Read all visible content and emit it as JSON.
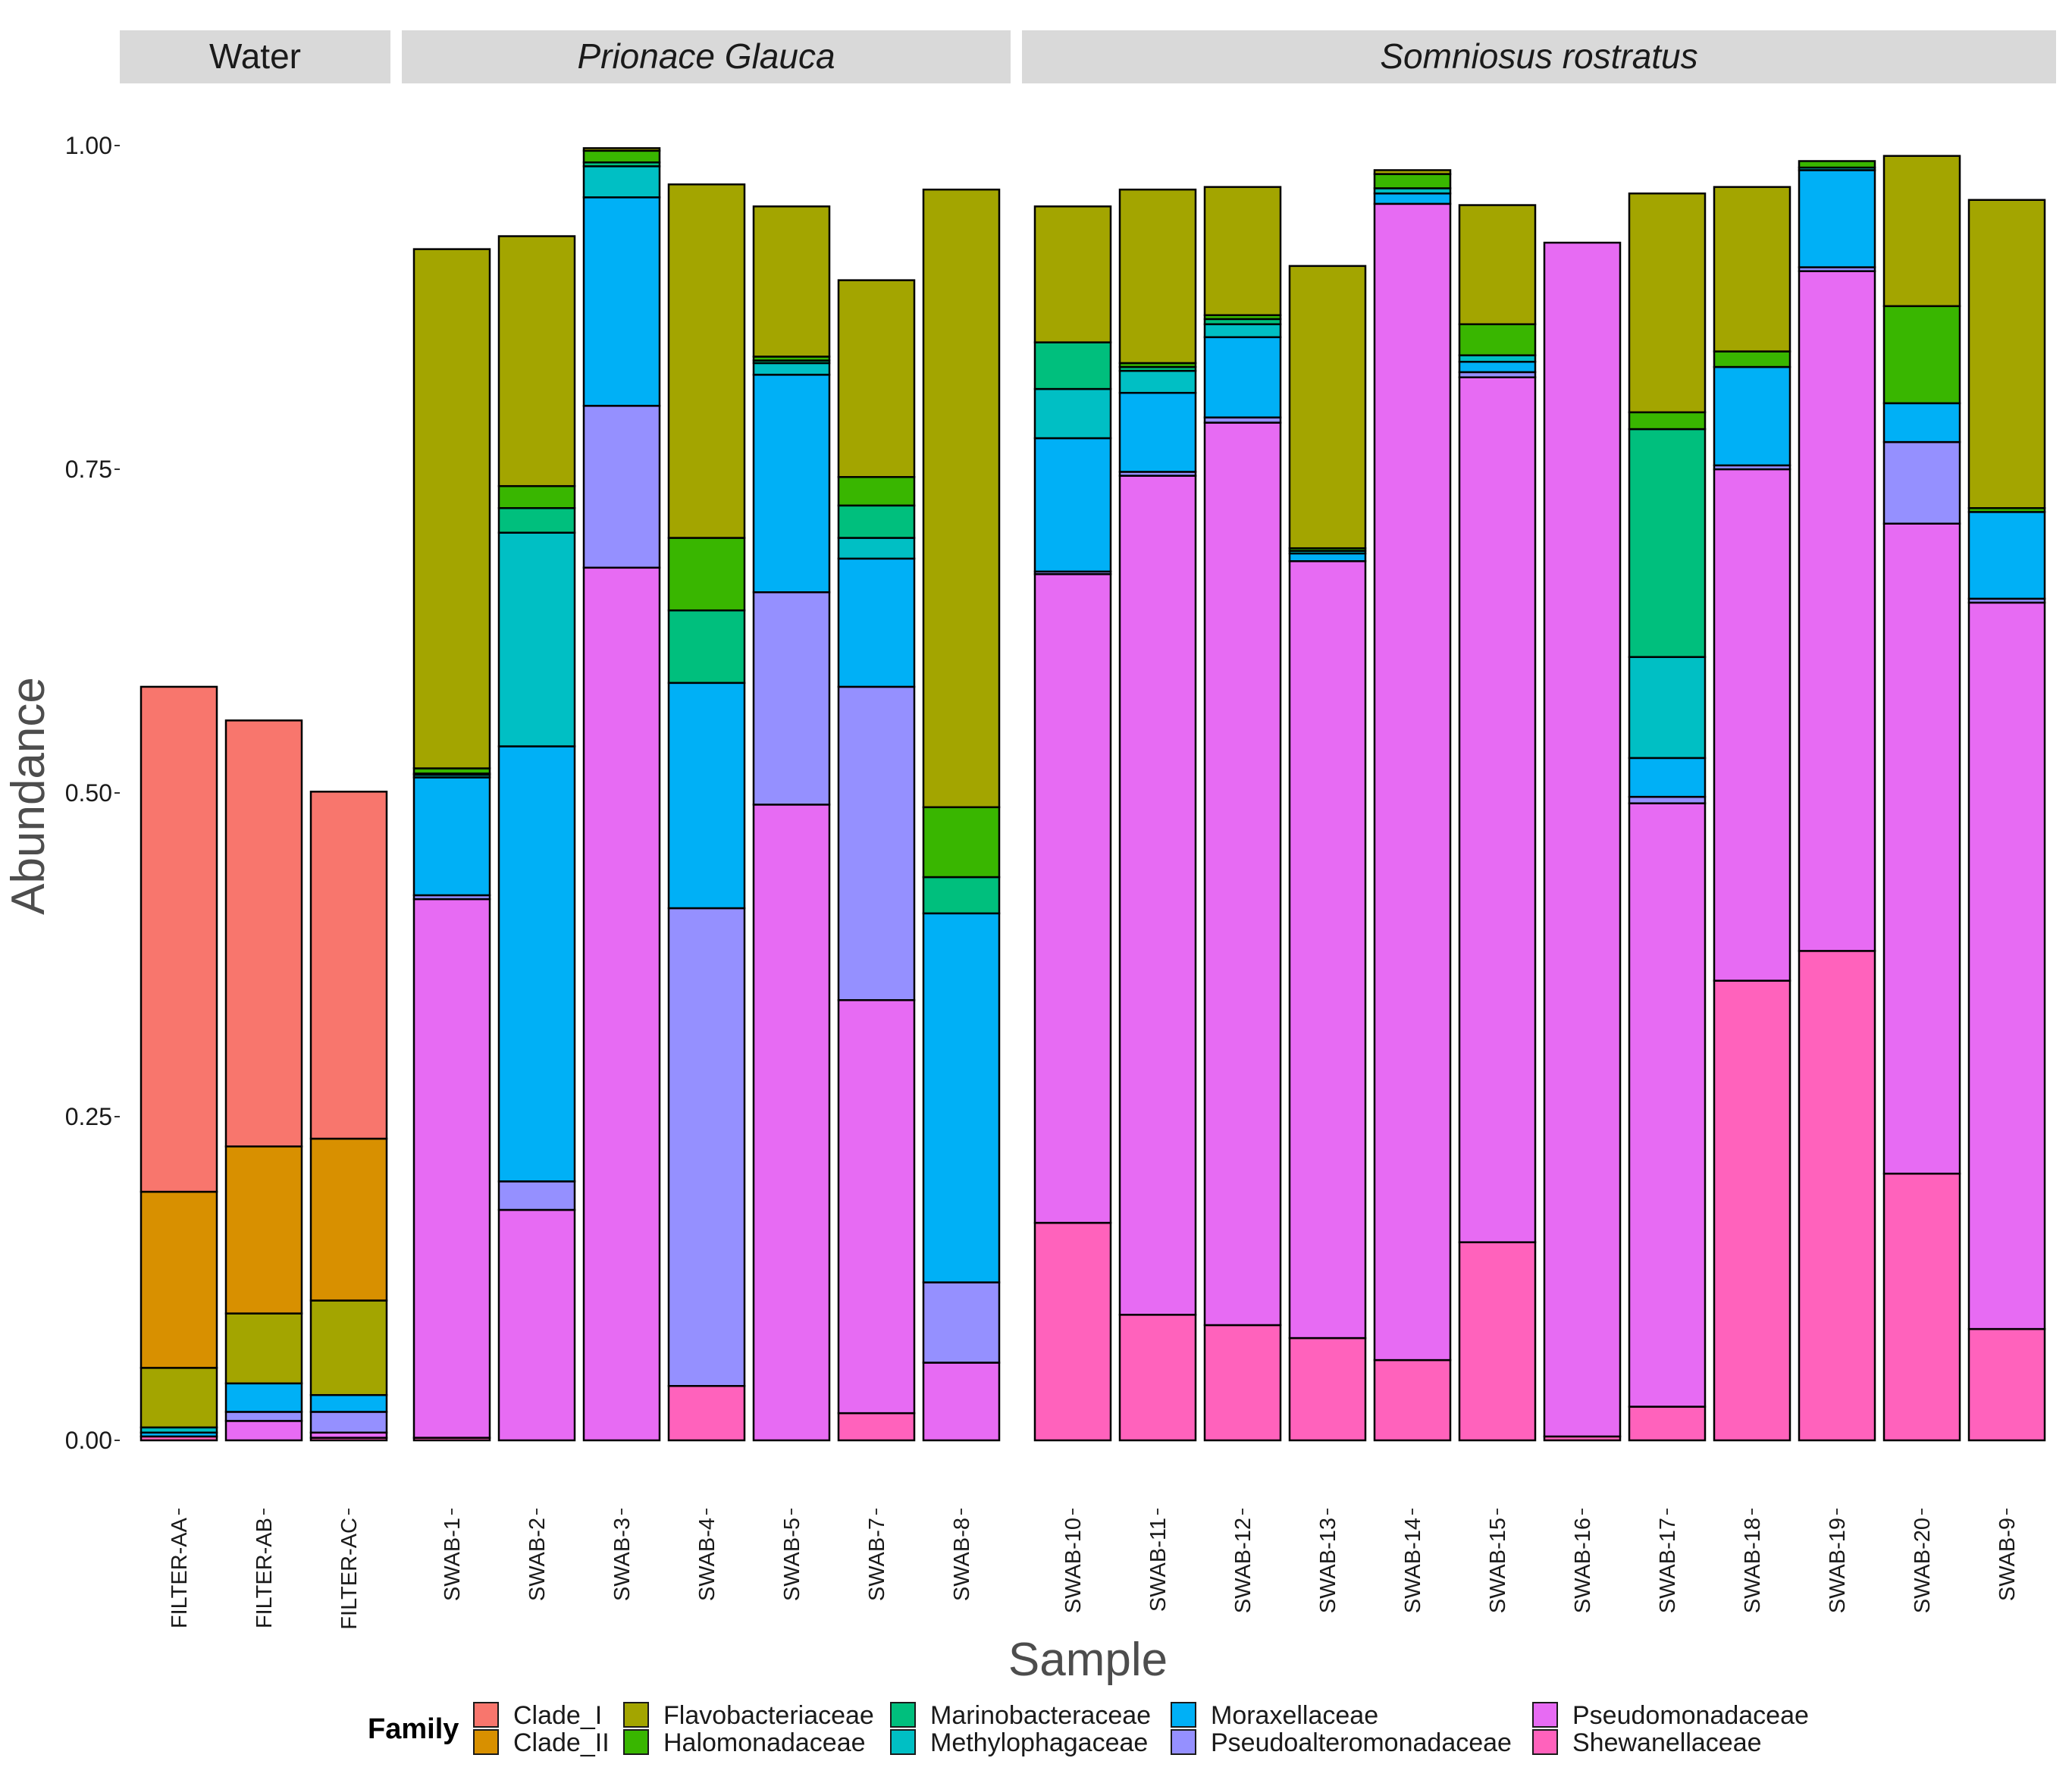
{
  "chart_data": {
    "type": "bar",
    "stacked": true,
    "xlabel": "Sample",
    "ylabel": "Abundance",
    "ylim": [
      0,
      1.0
    ],
    "yticks": [
      "0.00",
      "0.25",
      "0.50",
      "0.75",
      "1.00"
    ],
    "legend": {
      "title": "Family",
      "placement": "bottom",
      "entries": [
        {
          "name": "Clade_I",
          "color": "#F8766D"
        },
        {
          "name": "Clade_II",
          "color": "#D89000"
        },
        {
          "name": "Flavobacteriaceae",
          "color": "#A3A500"
        },
        {
          "name": "Halomonadaceae",
          "color": "#39B600"
        },
        {
          "name": "Marinobacteraceae",
          "color": "#00BF7D"
        },
        {
          "name": "Methylophagaceae",
          "color": "#00BFC4"
        },
        {
          "name": "Moraxellaceae",
          "color": "#00B0F6"
        },
        {
          "name": "Pseudoalteromonadaceae",
          "color": "#9590FF"
        },
        {
          "name": "Pseudomonadaceae",
          "color": "#E76BF3"
        },
        {
          "name": "Shewanellaceae",
          "color": "#FF62BC"
        }
      ]
    },
    "panels": [
      {
        "title": "Water",
        "italic": false,
        "samples": [
          {
            "name": "FILTER-AA",
            "segments": [
              {
                "family": "Shewanellaceae",
                "value": 0.003
              },
              {
                "family": "Moraxellaceae",
                "value": 0.003
              },
              {
                "family": "Methylophagaceae",
                "value": 0.004
              },
              {
                "family": "Flavobacteriaceae",
                "value": 0.046
              },
              {
                "family": "Clade_II",
                "value": 0.136
              },
              {
                "family": "Clade_I",
                "value": 0.39
              }
            ]
          },
          {
            "name": "FILTER-AB",
            "segments": [
              {
                "family": "Pseudomonadaceae",
                "value": 0.015
              },
              {
                "family": "Pseudoalteromonadaceae",
                "value": 0.007
              },
              {
                "family": "Moraxellaceae",
                "value": 0.022
              },
              {
                "family": "Flavobacteriaceae",
                "value": 0.054
              },
              {
                "family": "Clade_II",
                "value": 0.129
              },
              {
                "family": "Clade_I",
                "value": 0.329
              }
            ]
          },
          {
            "name": "FILTER-AC",
            "segments": [
              {
                "family": "Shewanellaceae",
                "value": 0.002
              },
              {
                "family": "Pseudomonadaceae",
                "value": 0.004
              },
              {
                "family": "Pseudoalteromonadaceae",
                "value": 0.016
              },
              {
                "family": "Moraxellaceae",
                "value": 0.013
              },
              {
                "family": "Flavobacteriaceae",
                "value": 0.073
              },
              {
                "family": "Clade_II",
                "value": 0.125
              },
              {
                "family": "Clade_I",
                "value": 0.268
              }
            ]
          }
        ]
      },
      {
        "title": "Prionace Glauca",
        "italic": true,
        "samples": [
          {
            "name": "SWAB-1",
            "segments": [
              {
                "family": "Shewanellaceae",
                "value": 0.002
              },
              {
                "family": "Pseudomonadaceae",
                "value": 0.416
              },
              {
                "family": "Pseudoalteromonadaceae",
                "value": 0.003
              },
              {
                "family": "Moraxellaceae",
                "value": 0.091
              },
              {
                "family": "Methylophagaceae",
                "value": 0.002
              },
              {
                "family": "Marinobacteraceae",
                "value": 0.001
              },
              {
                "family": "Halomonadaceae",
                "value": 0.004
              },
              {
                "family": "Flavobacteriaceae",
                "value": 0.401
              }
            ]
          },
          {
            "name": "SWAB-2",
            "segments": [
              {
                "family": "Pseudomonadaceae",
                "value": 0.178
              },
              {
                "family": "Pseudoalteromonadaceae",
                "value": 0.022
              },
              {
                "family": "Moraxellaceae",
                "value": 0.336
              },
              {
                "family": "Methylophagaceae",
                "value": 0.165
              },
              {
                "family": "Marinobacteraceae",
                "value": 0.019
              },
              {
                "family": "Halomonadaceae",
                "value": 0.017
              },
              {
                "family": "Flavobacteriaceae",
                "value": 0.193
              }
            ]
          },
          {
            "name": "SWAB-3",
            "segments": [
              {
                "family": "Pseudomonadaceae",
                "value": 0.674
              },
              {
                "family": "Pseudoalteromonadaceae",
                "value": 0.125
              },
              {
                "family": "Moraxellaceae",
                "value": 0.161
              },
              {
                "family": "Methylophagaceae",
                "value": 0.024
              },
              {
                "family": "Marinobacteraceae",
                "value": 0.003
              },
              {
                "family": "Halomonadaceae",
                "value": 0.009
              },
              {
                "family": "Flavobacteriaceae",
                "value": 0.002
              }
            ]
          },
          {
            "name": "SWAB-4",
            "segments": [
              {
                "family": "Shewanellaceae",
                "value": 0.042
              },
              {
                "family": "Pseudoalteromonadaceae",
                "value": 0.369
              },
              {
                "family": "Moraxellaceae",
                "value": 0.174
              },
              {
                "family": "Marinobacteraceae",
                "value": 0.056
              },
              {
                "family": "Halomonadaceae",
                "value": 0.056
              },
              {
                "family": "Flavobacteriaceae",
                "value": 0.273
              }
            ]
          },
          {
            "name": "SWAB-5",
            "segments": [
              {
                "family": "Pseudomonadaceae",
                "value": 0.491
              },
              {
                "family": "Pseudoalteromonadaceae",
                "value": 0.164
              },
              {
                "family": "Moraxellaceae",
                "value": 0.168
              },
              {
                "family": "Methylophagaceae",
                "value": 0.009
              },
              {
                "family": "Marinobacteraceae",
                "value": 0.002
              },
              {
                "family": "Halomonadaceae",
                "value": 0.003
              },
              {
                "family": "Flavobacteriaceae",
                "value": 0.116
              }
            ]
          },
          {
            "name": "SWAB-7",
            "segments": [
              {
                "family": "Shewanellaceae",
                "value": 0.021
              },
              {
                "family": "Pseudomonadaceae",
                "value": 0.319
              },
              {
                "family": "Pseudoalteromonadaceae",
                "value": 0.242
              },
              {
                "family": "Moraxellaceae",
                "value": 0.099
              },
              {
                "family": "Methylophagaceae",
                "value": 0.016
              },
              {
                "family": "Marinobacteraceae",
                "value": 0.025
              },
              {
                "family": "Halomonadaceae",
                "value": 0.022
              },
              {
                "family": "Flavobacteriaceae",
                "value": 0.152
              }
            ]
          },
          {
            "name": "SWAB-8",
            "segments": [
              {
                "family": "Pseudomonadaceae",
                "value": 0.06
              },
              {
                "family": "Pseudoalteromonadaceae",
                "value": 0.062
              },
              {
                "family": "Moraxellaceae",
                "value": 0.285
              },
              {
                "family": "Marinobacteraceae",
                "value": 0.028
              },
              {
                "family": "Halomonadaceae",
                "value": 0.054
              },
              {
                "family": "Flavobacteriaceae",
                "value": 0.477
              }
            ]
          }
        ]
      },
      {
        "title": "Somniosus rostratus",
        "italic": true,
        "samples": [
          {
            "name": "SWAB-10",
            "segments": [
              {
                "family": "Shewanellaceae",
                "value": 0.168
              },
              {
                "family": "Pseudomonadaceae",
                "value": 0.501
              },
              {
                "family": "Pseudoalteromonadaceae",
                "value": 0.002
              },
              {
                "family": "Moraxellaceae",
                "value": 0.103
              },
              {
                "family": "Methylophagaceae",
                "value": 0.038
              },
              {
                "family": "Marinobacteraceae",
                "value": 0.036
              },
              {
                "family": "Flavobacteriaceae",
                "value": 0.105
              }
            ]
          },
          {
            "name": "SWAB-11",
            "segments": [
              {
                "family": "Shewanellaceae",
                "value": 0.097
              },
              {
                "family": "Pseudomonadaceae",
                "value": 0.648
              },
              {
                "family": "Pseudoalteromonadaceae",
                "value": 0.003
              },
              {
                "family": "Moraxellaceae",
                "value": 0.061
              },
              {
                "family": "Methylophagaceae",
                "value": 0.017
              },
              {
                "family": "Marinobacteraceae",
                "value": 0.003
              },
              {
                "family": "Halomonadaceae",
                "value": 0.003
              },
              {
                "family": "Flavobacteriaceae",
                "value": 0.134
              }
            ]
          },
          {
            "name": "SWAB-12",
            "segments": [
              {
                "family": "Shewanellaceae",
                "value": 0.089
              },
              {
                "family": "Pseudomonadaceae",
                "value": 0.697
              },
              {
                "family": "Pseudoalteromonadaceae",
                "value": 0.004
              },
              {
                "family": "Moraxellaceae",
                "value": 0.062
              },
              {
                "family": "Methylophagaceae",
                "value": 0.01
              },
              {
                "family": "Marinobacteraceae",
                "value": 0.004
              },
              {
                "family": "Halomonadaceae",
                "value": 0.003
              },
              {
                "family": "Flavobacteriaceae",
                "value": 0.099
              }
            ]
          },
          {
            "name": "SWAB-13",
            "segments": [
              {
                "family": "Shewanellaceae",
                "value": 0.079
              },
              {
                "family": "Pseudomonadaceae",
                "value": 0.6
              },
              {
                "family": "Moraxellaceae",
                "value": 0.006
              },
              {
                "family": "Methylophagaceae",
                "value": 0.002
              },
              {
                "family": "Halomonadaceae",
                "value": 0.002
              },
              {
                "family": "Flavobacteriaceae",
                "value": 0.218
              }
            ]
          },
          {
            "name": "SWAB-14",
            "segments": [
              {
                "family": "Shewanellaceae",
                "value": 0.062
              },
              {
                "family": "Pseudomonadaceae",
                "value": 0.893
              },
              {
                "family": "Moraxellaceae",
                "value": 0.008
              },
              {
                "family": "Methylophagaceae",
                "value": 0.004
              },
              {
                "family": "Halomonadaceae",
                "value": 0.011
              },
              {
                "family": "Flavobacteriaceae",
                "value": 0.003
              }
            ]
          },
          {
            "name": "SWAB-15",
            "segments": [
              {
                "family": "Shewanellaceae",
                "value": 0.153
              },
              {
                "family": "Pseudomonadaceae",
                "value": 0.668
              },
              {
                "family": "Pseudoalteromonadaceae",
                "value": 0.004
              },
              {
                "family": "Moraxellaceae",
                "value": 0.008
              },
              {
                "family": "Methylophagaceae",
                "value": 0.005
              },
              {
                "family": "Halomonadaceae",
                "value": 0.024
              },
              {
                "family": "Flavobacteriaceae",
                "value": 0.092
              }
            ]
          },
          {
            "name": "SWAB-16",
            "segments": [
              {
                "family": "Shewanellaceae",
                "value": 0.003
              },
              {
                "family": "Pseudomonadaceae",
                "value": 0.922
              }
            ]
          },
          {
            "name": "SWAB-17",
            "segments": [
              {
                "family": "Shewanellaceae",
                "value": 0.026
              },
              {
                "family": "Pseudomonadaceae",
                "value": 0.466
              },
              {
                "family": "Pseudoalteromonadaceae",
                "value": 0.005
              },
              {
                "family": "Moraxellaceae",
                "value": 0.03
              },
              {
                "family": "Methylophagaceae",
                "value": 0.078
              },
              {
                "family": "Marinobacteraceae",
                "value": 0.176
              },
              {
                "family": "Halomonadaceae",
                "value": 0.013
              },
              {
                "family": "Flavobacteriaceae",
                "value": 0.169
              }
            ]
          },
          {
            "name": "SWAB-18",
            "segments": [
              {
                "family": "Shewanellaceae",
                "value": 0.355
              },
              {
                "family": "Pseudomonadaceae",
                "value": 0.395
              },
              {
                "family": "Pseudoalteromonadaceae",
                "value": 0.003
              },
              {
                "family": "Moraxellaceae",
                "value": 0.076
              },
              {
                "family": "Halomonadaceae",
                "value": 0.012
              },
              {
                "family": "Flavobacteriaceae",
                "value": 0.127
              }
            ]
          },
          {
            "name": "SWAB-19",
            "segments": [
              {
                "family": "Shewanellaceae",
                "value": 0.378
              },
              {
                "family": "Pseudomonadaceae",
                "value": 0.525
              },
              {
                "family": "Pseudoalteromonadaceae",
                "value": 0.003
              },
              {
                "family": "Moraxellaceae",
                "value": 0.075
              },
              {
                "family": "Methylophagaceae",
                "value": 0.002
              },
              {
                "family": "Halomonadaceae",
                "value": 0.005
              }
            ]
          },
          {
            "name": "SWAB-20",
            "segments": [
              {
                "family": "Shewanellaceae",
                "value": 0.206
              },
              {
                "family": "Pseudomonadaceae",
                "value": 0.502
              },
              {
                "family": "Pseudoalteromonadaceae",
                "value": 0.063
              },
              {
                "family": "Moraxellaceae",
                "value": 0.03
              },
              {
                "family": "Halomonadaceae",
                "value": 0.075
              },
              {
                "family": "Flavobacteriaceae",
                "value": 0.116
              }
            ]
          },
          {
            "name": "SWAB-9",
            "segments": [
              {
                "family": "Shewanellaceae",
                "value": 0.086
              },
              {
                "family": "Pseudomonadaceae",
                "value": 0.561
              },
              {
                "family": "Pseudoalteromonadaceae",
                "value": 0.003
              },
              {
                "family": "Moraxellaceae",
                "value": 0.067
              },
              {
                "family": "Halomonadaceae",
                "value": 0.003
              },
              {
                "family": "Flavobacteriaceae",
                "value": 0.238
              }
            ]
          }
        ]
      }
    ]
  }
}
